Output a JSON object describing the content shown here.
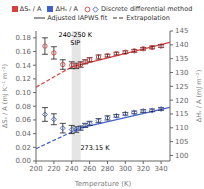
{
  "chart_data": {
    "type": "scatter",
    "xlabel": "Temperature (K)",
    "ylabel": "ΔSₛ / A (mJ K⁻¹ m⁻²)",
    "y2label": "ΔHₛ / A (mJ m⁻²)",
    "xlim": [
      200,
      350
    ],
    "xticks": [
      200,
      220,
      240,
      260,
      280,
      300,
      320,
      340
    ],
    "ylim": [
      0,
      0.19
    ],
    "yticks": [
      {
        "value": 0,
        "label": "0.00"
      },
      0.02,
      0.04,
      0.06,
      0.08,
      {
        "value": 0.1,
        "label": "0.10"
      },
      0.12,
      0.14,
      0.16,
      0.18
    ],
    "y2lim": [
      98,
      145
    ],
    "y2ticks": [
      100,
      105,
      110,
      115,
      120,
      125,
      130,
      135,
      140,
      145
    ],
    "shaded_region": [
      240,
      250
    ],
    "annotations": [
      {
        "text": "240-250 K\nSIP",
        "x": 244,
        "y": 0.188
      },
      {
        "text": "273.15 K",
        "x": 266,
        "y": 0.023
      }
    ],
    "legend": "top",
    "series": [
      {
        "name": "ΔSₛ / A",
        "color": "#d94040",
        "points": {
          "name": "Discrete differential method",
          "marker": "circle",
          "x": [
            210,
            220,
            230,
            240,
            245,
            250,
            255,
            260,
            270,
            280,
            290,
            300,
            310,
            320,
            330,
            340
          ],
          "values": [
            0.168,
            0.158,
            0.141,
            0.14,
            0.139,
            0.141,
            0.145,
            0.148,
            0.152,
            0.154,
            0.157,
            0.159,
            0.161,
            0.164,
            0.166,
            0.168
          ],
          "errors": [
            0.012,
            0.009,
            0.007,
            0.005,
            0.004,
            0.004,
            0.003,
            0.003,
            0.003,
            0.002,
            0.002,
            0.002,
            0.002,
            0.002,
            0.002,
            0.002
          ]
        },
        "fit": {
          "name": "Adjusted IAPWS fit",
          "line_style": "solid",
          "x": [
            240,
            350
          ],
          "values": [
            0.1375,
            0.1735
          ]
        },
        "extrapolation": {
          "name": "Extrapolation",
          "line_style": "dashed",
          "x": [
            200,
            240
          ],
          "values": [
            0.108,
            0.1375
          ]
        }
      },
      {
        "name": "ΔHₛ / A",
        "color": "#4060cc",
        "points": {
          "name": "Discrete differential method",
          "marker": "diamond",
          "x": [
            210,
            220,
            230,
            240,
            245,
            250,
            255,
            260,
            270,
            280,
            290,
            300,
            310,
            320,
            330,
            340
          ],
          "values": [
            0.068,
            0.061,
            0.048,
            0.046,
            0.046,
            0.048,
            0.052,
            0.055,
            0.059,
            0.063,
            0.066,
            0.069,
            0.071,
            0.073,
            0.074,
            0.076
          ],
          "errors": [
            0.01,
            0.008,
            0.007,
            0.006,
            0.004,
            0.003,
            0.003,
            0.003,
            0.003,
            0.003,
            0.002,
            0.002,
            0.002,
            0.002,
            0.002,
            0.002
          ]
        },
        "fit": {
          "name": "Adjusted IAPWS fit",
          "line_style": "solid",
          "x": [
            250,
            350
          ],
          "values": [
            0.0485,
            0.0785
          ]
        },
        "extrapolation": {
          "name": "Extrapolation",
          "line_style": "dashed",
          "x": [
            200,
            250
          ],
          "values": [
            0.018,
            0.0485
          ]
        }
      }
    ]
  }
}
